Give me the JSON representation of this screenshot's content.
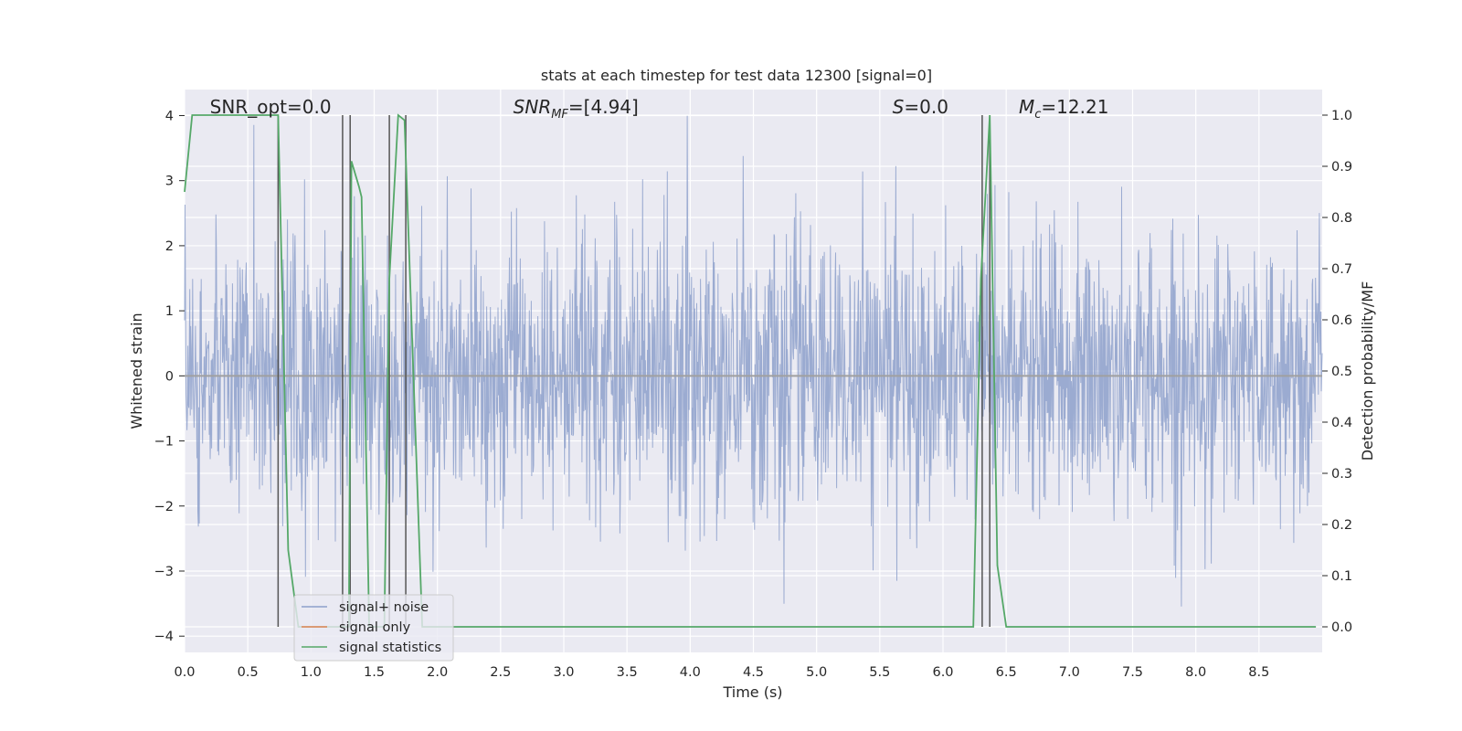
{
  "chart_data": {
    "type": "line",
    "title": "stats at each timestep for test data 12300 [signal=0]",
    "xlabel": "Time (s)",
    "ylabel": "Whitened strain",
    "ylabel_right": "Detection probability/MF",
    "xlim": [
      0.0,
      9.0
    ],
    "ylim": [
      -4.25,
      4.4
    ],
    "ylim_right": [
      -0.05,
      1.05
    ],
    "x_ticks": [
      "0.0",
      "0.5",
      "1.0",
      "1.5",
      "2.0",
      "2.5",
      "3.0",
      "3.5",
      "4.0",
      "4.5",
      "5.0",
      "5.5",
      "6.0",
      "6.5",
      "7.0",
      "7.5",
      "8.0",
      "8.5"
    ],
    "y_ticks": [
      "−4",
      "−3",
      "−2",
      "−1",
      "0",
      "1",
      "2",
      "3",
      "4"
    ],
    "y_ticks_right": [
      "0.0",
      "0.1",
      "0.2",
      "0.3",
      "0.4",
      "0.5",
      "0.6",
      "0.7",
      "0.8",
      "0.9",
      "1.0"
    ],
    "grid": true,
    "legend_position": "lower-left",
    "annotations": [
      {
        "id": "snr_opt",
        "text": "SNR_opt=0.0",
        "x": 0.2
      },
      {
        "id": "snr_mf",
        "text": "SNR_MF=[4.94]",
        "x": 2.6
      },
      {
        "id": "s",
        "text": "S=0.0",
        "x": 5.6
      },
      {
        "id": "mc",
        "text": "M_c=12.21",
        "x": 6.6
      }
    ],
    "series": [
      {
        "name": "signal+ noise",
        "axis": "left",
        "color": "#8da0cb",
        "description_type": "noise",
        "dense_band_range": [
          -1.6,
          1.6
        ],
        "outer_range": [
          -3.9,
          4.0
        ]
      },
      {
        "name": "signal only",
        "axis": "left",
        "color": "#dd8452",
        "values_constant": 0.0
      },
      {
        "name": "signal statistics",
        "axis": "right",
        "color": "#55a868",
        "points": [
          [
            0.0,
            0.85
          ],
          [
            0.06,
            1.0
          ],
          [
            0.12,
            1.0
          ],
          [
            0.5,
            1.0
          ],
          [
            0.72,
            1.0
          ],
          [
            0.74,
            1.0
          ],
          [
            0.82,
            0.15
          ],
          [
            0.9,
            0.0
          ],
          [
            1.25,
            0.0
          ],
          [
            1.3,
            0.0
          ],
          [
            1.32,
            0.91
          ],
          [
            1.38,
            0.86
          ],
          [
            1.4,
            0.84
          ],
          [
            1.46,
            0.0
          ],
          [
            1.58,
            0.0
          ],
          [
            1.62,
            0.68
          ],
          [
            1.69,
            1.0
          ],
          [
            1.74,
            0.99
          ],
          [
            1.88,
            0.0
          ],
          [
            6.24,
            0.0
          ],
          [
            6.3,
            0.68
          ],
          [
            6.37,
            1.0
          ],
          [
            6.43,
            0.12
          ],
          [
            6.5,
            0.0
          ],
          [
            8.95,
            0.0
          ]
        ]
      }
    ],
    "vertical_markers": [
      0.74,
      1.25,
      1.31,
      1.62,
      1.75,
      6.31,
      6.37
    ],
    "marker_color": "#555555"
  }
}
